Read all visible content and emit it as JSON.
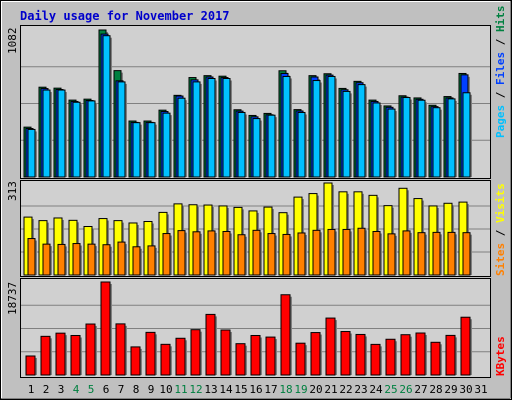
{
  "chart_data": {
    "type": "bar",
    "title": "Daily usage for November 2017",
    "days": [
      "1",
      "2",
      "3",
      "4",
      "5",
      "6",
      "7",
      "8",
      "9",
      "10",
      "11",
      "12",
      "13",
      "14",
      "15",
      "16",
      "17",
      "18",
      "19",
      "20",
      "21",
      "22",
      "23",
      "24",
      "25",
      "26",
      "27",
      "28",
      "29",
      "30",
      "31"
    ],
    "weekend_days": [
      "4",
      "5",
      "11",
      "12",
      "18",
      "19",
      "25",
      "26"
    ],
    "top_panel": {
      "max_label": "1082",
      "legend": [
        {
          "text": "Hits",
          "color": "#008040"
        },
        {
          "text": "Files",
          "color": "#0040ff"
        },
        {
          "text": "Pages",
          "color": "#00c0ff"
        }
      ],
      "ylim": [
        0,
        1082
      ],
      "hits": [
        367,
        661,
        654,
        566,
        573,
        1082,
        783,
        412,
        412,
        492,
        601,
        732,
        746,
        742,
        495,
        453,
        468,
        782,
        496,
        746,
        760,
        652,
        704,
        566,
        523,
        598,
        582,
        528,
        592,
        762,
        0
      ],
      "files": [
        357,
        651,
        644,
        556,
        563,
        1052,
        708,
        402,
        402,
        482,
        596,
        715,
        736,
        732,
        485,
        443,
        458,
        762,
        486,
        736,
        750,
        642,
        694,
        556,
        513,
        588,
        572,
        518,
        582,
        752,
        0
      ],
      "pages": [
        350,
        640,
        640,
        550,
        560,
        1040,
        700,
        400,
        400,
        470,
        580,
        700,
        725,
        725,
        475,
        430,
        455,
        740,
        475,
        710,
        740,
        630,
        680,
        545,
        500,
        585,
        565,
        510,
        575,
        620,
        0
      ]
    },
    "middle_panel": {
      "max_label": "313",
      "legend": [
        {
          "text": "Visits",
          "color": "#ffff00"
        },
        {
          "text": "Sites",
          "color": "#ff8000"
        }
      ],
      "ylim": [
        0,
        313
      ],
      "visits": [
        197,
        185,
        194,
        186,
        165,
        192,
        185,
        177,
        182,
        213,
        242,
        239,
        238,
        235,
        230,
        218,
        231,
        212,
        265,
        277,
        313,
        283,
        283,
        271,
        236,
        295,
        260,
        235,
        244,
        248,
        0
      ],
      "sites": [
        124,
        105,
        104,
        107,
        105,
        103,
        112,
        96,
        99,
        141,
        151,
        147,
        150,
        148,
        137,
        152,
        141,
        138,
        143,
        152,
        155,
        155,
        159,
        148,
        140,
        150,
        144,
        145,
        145,
        144,
        0
      ]
    },
    "bottom_panel": {
      "max_label": "18737",
      "legend": [
        {
          "text": "KBytes",
          "color": "#ff0000"
        }
      ],
      "ylim": [
        0,
        18737
      ],
      "kbytes": [
        3830,
        7790,
        8430,
        7960,
        10270,
        18737,
        10300,
        5660,
        8590,
        6180,
        7400,
        9130,
        12210,
        9060,
        6310,
        7960,
        7640,
        16170,
        6410,
        8550,
        11470,
        8760,
        8170,
        6170,
        7200,
        8120,
        8460,
        6590,
        7980,
        11640,
        0
      ]
    }
  }
}
